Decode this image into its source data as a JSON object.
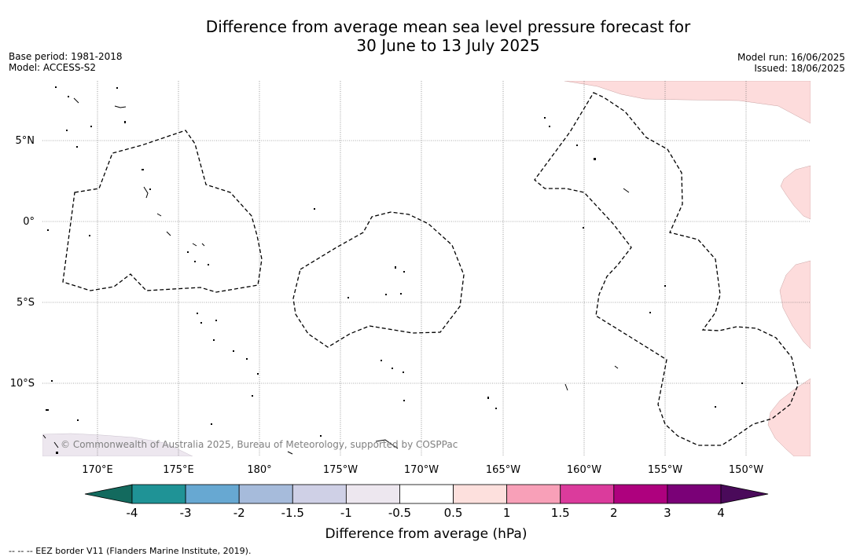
{
  "title_line1": "Difference from average mean sea level pressure forecast for",
  "title_line2": "30 June to 13 July 2025",
  "base_period": "Base period: 1981-2018",
  "model": "Model: ACCESS-S2",
  "model_run": "Model run: 16/06/2025",
  "issued": "Issued: 18/06/2025",
  "copyright": "© Commonwealth of Australia 2025, Bureau of Meteorology, supported by COSPPac",
  "lat_labels": [
    "5°N",
    "0°",
    "5°S",
    "10°S"
  ],
  "lon_labels": [
    "170°E",
    "175°E",
    "180°",
    "175°W",
    "170°W",
    "165°W",
    "160°W",
    "155°W",
    "150°W"
  ],
  "colorbar": {
    "label": "Difference from average (hPa)",
    "ticks": [
      "-4",
      "-3",
      "-2",
      "-1.5",
      "-1",
      "-0.5",
      "0.5",
      "1",
      "1.5",
      "2",
      "3",
      "4"
    ],
    "under_color": "#136a5e",
    "over_color": "#4a0a5a",
    "colors": [
      "#1f9396",
      "#67a8d2",
      "#a6bbdb",
      "#cfd0e6",
      "#ede7ef",
      "#ffffff",
      "#fde0dd",
      "#f8a0b8",
      "#db3b9c",
      "#ae017e",
      "#7a0177"
    ]
  },
  "footnote": "--  --  -- EEZ border V11 (Flanders Marine Institute, 2019)."
}
